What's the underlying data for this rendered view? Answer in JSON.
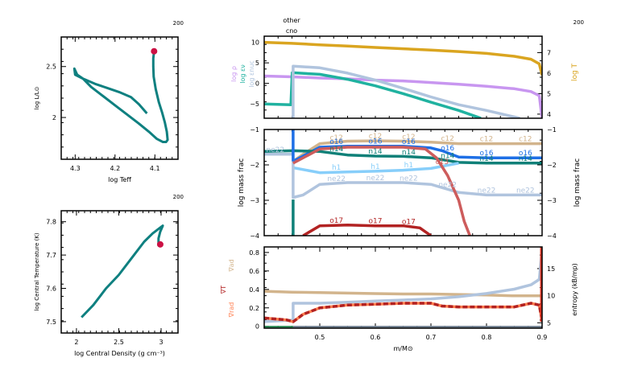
{
  "chart_data": [
    {
      "id": "hr",
      "type": "line",
      "title": "",
      "model_number": "200",
      "xlabel": "log Teff",
      "ylabel": "log L/L⊙",
      "xlim": [
        4.335,
        4.042
      ],
      "ylim": [
        1.59,
        2.79
      ],
      "xticks": [
        4.3,
        4.2,
        4.1
      ],
      "xtick_labels": [
        "4.3",
        "4.2",
        "4.1"
      ],
      "yticks": [
        2.0,
        2.5
      ],
      "ytick_labels": [
        "2",
        "2.5"
      ],
      "series": [
        {
          "name": "track",
          "color": "#0f8080",
          "x": [
            4.12,
            4.14,
            4.16,
            4.19,
            4.22,
            4.25,
            4.28,
            4.3,
            4.302,
            4.295,
            4.28,
            4.26,
            4.23,
            4.2,
            4.17,
            4.14,
            4.115,
            4.095,
            4.08,
            4.072,
            4.068,
            4.07,
            4.075,
            4.082,
            4.09,
            4.098,
            4.103,
            4.104,
            4.104,
            4.102
          ],
          "y": [
            2.04,
            2.13,
            2.2,
            2.25,
            2.29,
            2.33,
            2.38,
            2.42,
            2.48,
            2.42,
            2.38,
            2.3,
            2.21,
            2.12,
            2.03,
            1.94,
            1.86,
            1.79,
            1.76,
            1.76,
            1.78,
            1.86,
            1.95,
            2.05,
            2.15,
            2.28,
            2.4,
            2.5,
            2.58,
            2.65
          ]
        }
      ],
      "marker": {
        "name": "current model",
        "x": 4.102,
        "y": 2.65,
        "color": "#cc1144"
      }
    },
    {
      "id": "rhoT",
      "type": "line",
      "title": "",
      "model_number": "200",
      "xlabel": "log Central Density (g cm⁻³)",
      "ylabel": "log Central Temperature (K)",
      "xlim": [
        1.82,
        3.2
      ],
      "ylim": [
        7.466,
        7.833
      ],
      "xticks": [
        2.0,
        2.5,
        3.0
      ],
      "xtick_labels": [
        "2",
        "2.5",
        "3"
      ],
      "yticks": [
        7.5,
        7.6,
        7.7,
        7.8
      ],
      "ytick_labels": [
        "7.5",
        "7.6",
        "7.7",
        "7.8"
      ],
      "series": [
        {
          "name": "track",
          "color": "#0f8080",
          "x": [
            2.06,
            2.2,
            2.35,
            2.5,
            2.65,
            2.8,
            2.9,
            3.02,
            2.99,
            2.97,
            2.97
          ],
          "y": [
            7.513,
            7.55,
            7.6,
            7.64,
            7.69,
            7.74,
            7.765,
            7.788,
            7.77,
            7.75,
            7.728
          ]
        }
      ],
      "marker": {
        "name": "current model",
        "x": 2.99,
        "y": 7.732,
        "color": "#cc1144"
      }
    },
    {
      "id": "profile-top",
      "type": "line",
      "title": "",
      "model_number": "200",
      "top_labels": [
        "other",
        "cno"
      ],
      "xlim": [
        0.4,
        0.9
      ],
      "ylim": [
        -8.5,
        11.5
      ],
      "yticks": [
        -5,
        0,
        5,
        10
      ],
      "ytick_labels": [
        "−5",
        "0",
        "5",
        "10"
      ],
      "left_labels": [
        {
          "text": "log ρ",
          "color": "#c896f0"
        },
        {
          "text": "log εν",
          "color": "#20b2a0"
        },
        {
          "text": "log εnuc",
          "color": "#b0c4de"
        }
      ],
      "right_label": {
        "text": "log T",
        "color": "#daa520"
      },
      "y2lim": [
        3.8,
        7.8
      ],
      "y2ticks": [
        4,
        5,
        6,
        7
      ],
      "y2tick_labels": [
        "4",
        "5",
        "6",
        "7"
      ],
      "series": [
        {
          "name": "log T",
          "axis": "right",
          "color": "#daa520",
          "x": [
            0.4,
            0.45,
            0.5,
            0.55,
            0.6,
            0.65,
            0.7,
            0.75,
            0.8,
            0.85,
            0.88,
            0.895,
            0.9
          ],
          "y": [
            7.5,
            7.45,
            7.38,
            7.32,
            7.25,
            7.19,
            7.12,
            7.05,
            6.96,
            6.82,
            6.68,
            6.45,
            5.9
          ]
        },
        {
          "name": "log rho",
          "axis": "left",
          "color": "#c896f0",
          "x": [
            0.4,
            0.45,
            0.5,
            0.55,
            0.6,
            0.65,
            0.7,
            0.75,
            0.8,
            0.85,
            0.88,
            0.895,
            0.9
          ],
          "y": [
            1.8,
            1.6,
            1.3,
            1.1,
            0.8,
            0.6,
            0.2,
            -0.2,
            -0.7,
            -1.3,
            -2.0,
            -3.0,
            -8.5
          ]
        },
        {
          "name": "log eps_nu",
          "axis": "left",
          "color": "#20b2a0",
          "x": [
            0.4,
            0.448,
            0.4505,
            0.5,
            0.55,
            0.6,
            0.65,
            0.7,
            0.75,
            0.79
          ],
          "y": [
            -5.0,
            -5.2,
            2.6,
            2.2,
            1.0,
            -0.6,
            -2.5,
            -4.6,
            -6.6,
            -8.5
          ]
        },
        {
          "name": "log eps_nuc",
          "axis": "left",
          "color": "#b0c4de",
          "x": [
            0.452,
            0.452,
            0.5,
            0.55,
            0.6,
            0.65,
            0.7,
            0.75,
            0.8,
            0.86
          ],
          "y": [
            -8.5,
            4.2,
            3.8,
            2.5,
            0.8,
            -1.2,
            -3.3,
            -5.2,
            -6.6,
            -8.5
          ]
        }
      ]
    },
    {
      "id": "profile-mid",
      "type": "line",
      "title": "",
      "ylabel": "log mass frac",
      "y2label": "log mass frac",
      "xlim": [
        0.4,
        0.9
      ],
      "ylim": [
        -4,
        -1
      ],
      "yticks": [
        -4,
        -3,
        -2,
        -1
      ],
      "ytick_labels": [
        "−4",
        "−3",
        "−2",
        "−1"
      ],
      "series": [
        {
          "name": "c12",
          "color": "#d2b48c",
          "label_positions": [
            0.53,
            0.6,
            0.66,
            0.73,
            0.8,
            0.87
          ],
          "x": [
            0.452,
            0.47,
            0.5,
            0.55,
            0.6,
            0.65,
            0.7,
            0.75,
            0.8,
            0.9
          ],
          "y": [
            -1.9,
            -1.7,
            -1.4,
            -1.33,
            -1.32,
            -1.33,
            -1.36,
            -1.4,
            -1.4,
            -1.4
          ]
        },
        {
          "name": "o16",
          "color": "#1e6fe6",
          "label_positions": [
            0.53,
            0.6,
            0.66,
            0.73,
            0.8,
            0.87
          ],
          "x": [
            0.452,
            0.47,
            0.5,
            0.55,
            0.6,
            0.65,
            0.7,
            0.72,
            0.75,
            0.8,
            0.9
          ],
          "y": [
            -1.9,
            -1.75,
            -1.5,
            -1.47,
            -1.47,
            -1.47,
            -1.52,
            -1.6,
            -1.78,
            -1.8,
            -1.8
          ]
        },
        {
          "name": "n14",
          "color": "#0f8078",
          "label_positions": [
            0.53,
            0.6,
            0.66,
            0.73,
            0.8,
            0.87
          ],
          "x": [
            0.4,
            0.452,
            0.5,
            0.55,
            0.6,
            0.65,
            0.7,
            0.75,
            0.8,
            0.9
          ],
          "y": [
            -1.62,
            -1.6,
            -1.62,
            -1.72,
            -1.75,
            -1.76,
            -1.8,
            -1.93,
            -1.95,
            -1.95
          ]
        },
        {
          "name": "h1",
          "color": "#87cefa",
          "label_positions": [
            0.53,
            0.6,
            0.66
          ],
          "x": [
            0.452,
            0.5,
            0.55,
            0.6,
            0.65,
            0.7,
            0.75
          ],
          "y": [
            -2.08,
            -2.22,
            -2.2,
            -2.18,
            -2.15,
            -2.1,
            -1.95
          ]
        },
        {
          "name": "ne22",
          "color": "#b0c4de",
          "label_positions": [
            0.42,
            0.53,
            0.6,
            0.66,
            0.73,
            0.8,
            0.87
          ],
          "x": [
            0.4,
            0.452,
            0.452,
            0.47,
            0.5,
            0.55,
            0.6,
            0.65,
            0.7,
            0.75,
            0.8,
            0.9
          ],
          "y": [
            -1.7,
            -1.7,
            -2.92,
            -2.85,
            -2.55,
            -2.5,
            -2.5,
            -2.5,
            -2.55,
            -2.78,
            -2.85,
            -2.85
          ]
        },
        {
          "name": "c13",
          "color": "#cd5c5c",
          "label_positions": [
            0.72
          ],
          "x": [
            0.452,
            0.5,
            0.55,
            0.6,
            0.65,
            0.69,
            0.71,
            0.73,
            0.75,
            0.76,
            0.77
          ],
          "y": [
            -1.95,
            -1.55,
            -1.5,
            -1.5,
            -1.5,
            -1.55,
            -1.8,
            -2.3,
            -3.0,
            -3.6,
            -4.0
          ]
        },
        {
          "name": "o17",
          "color": "#b22222",
          "label_positions": [
            0.53,
            0.6,
            0.66
          ],
          "x": [
            0.47,
            0.5,
            0.55,
            0.6,
            0.65,
            0.68,
            0.7
          ],
          "y": [
            -4.0,
            -3.72,
            -3.7,
            -3.72,
            -3.72,
            -3.78,
            -4.0
          ]
        },
        {
          "name": "vertical boundary",
          "color": "#1e6fe6",
          "x": [
            0.452,
            0.452
          ],
          "y": [
            -1.0,
            -1.9
          ]
        },
        {
          "name": "n14 boundary",
          "color": "#0f8078",
          "x": [
            0.452,
            0.452
          ],
          "y": [
            -2.98,
            -4.0
          ]
        }
      ]
    },
    {
      "id": "profile-bot",
      "type": "line",
      "title": "",
      "xlabel": "m/M⊙",
      "xlim": [
        0.4,
        0.9
      ],
      "xticks": [
        0.5,
        0.6,
        0.7,
        0.8,
        0.9
      ],
      "xtick_labels": [
        "0.5",
        "0.6",
        "0.7",
        "0.8",
        "0.9"
      ],
      "ylim": [
        -0.02,
        0.86
      ],
      "yticks": [
        0,
        0.2,
        0.4,
        0.6,
        0.8
      ],
      "ytick_labels": [
        "0",
        "0.2",
        "0.4",
        "0.6",
        "0.8"
      ],
      "left_labels": [
        {
          "text": "∇ad",
          "color": "#d2b48c"
        },
        {
          "text": "∇T",
          "color": "#b22222"
        },
        {
          "text": "∇rad",
          "color": "#ff7f50"
        }
      ],
      "y2label": "entropy (kB/mp)",
      "y2lim": [
        4,
        19
      ],
      "y2ticks": [
        5,
        10,
        15
      ],
      "y2tick_labels": [
        "5",
        "10",
        "15"
      ],
      "series": [
        {
          "name": "grad_ad",
          "axis": "left",
          "color": "#d2b48c",
          "x": [
            0.4,
            0.45,
            0.5,
            0.55,
            0.6,
            0.65,
            0.7,
            0.75,
            0.8,
            0.85,
            0.89,
            0.9
          ],
          "y": [
            0.38,
            0.37,
            0.365,
            0.36,
            0.355,
            0.35,
            0.35,
            0.345,
            0.34,
            0.33,
            0.33,
            0.33
          ]
        },
        {
          "name": "entropy",
          "axis": "right",
          "color": "#b0c4de",
          "x": [
            0.4,
            0.452,
            0.452,
            0.5,
            0.55,
            0.6,
            0.65,
            0.7,
            0.75,
            0.8,
            0.85,
            0.88,
            0.895,
            0.9
          ],
          "y": [
            5.2,
            5.5,
            8.6,
            8.6,
            8.8,
            9.0,
            9.2,
            9.4,
            9.8,
            10.4,
            11.2,
            12.0,
            13.0,
            18.5
          ]
        },
        {
          "name": "grad_rad",
          "axis": "left",
          "color": "#ff7f50",
          "x": [
            0.4,
            0.44,
            0.452,
            0.47,
            0.5,
            0.55,
            0.6,
            0.65,
            0.7,
            0.72,
            0.75,
            0.8,
            0.85,
            0.88,
            0.895,
            0.9
          ],
          "y": [
            0.09,
            0.07,
            0.05,
            0.13,
            0.2,
            0.23,
            0.24,
            0.25,
            0.25,
            0.22,
            0.21,
            0.21,
            0.21,
            0.25,
            0.23,
            0.06
          ]
        },
        {
          "name": "grad_T",
          "axis": "left",
          "color": "#b22222",
          "dashed": true,
          "x": [
            0.4,
            0.44,
            0.452,
            0.47,
            0.5,
            0.55,
            0.6,
            0.65,
            0.7,
            0.72,
            0.75,
            0.8,
            0.85,
            0.88,
            0.895,
            0.9
          ],
          "y": [
            0.09,
            0.07,
            0.05,
            0.13,
            0.2,
            0.23,
            0.24,
            0.25,
            0.25,
            0.22,
            0.21,
            0.21,
            0.21,
            0.25,
            0.23,
            0.06
          ]
        },
        {
          "name": "grad_T spike",
          "axis": "left",
          "color": "#dd3322",
          "x": [
            0.899,
            0.899
          ],
          "y": [
            0.05,
            0.86
          ]
        },
        {
          "name": "mixing zone",
          "axis": "left",
          "color": "#2e8b57",
          "x": [
            0.4,
            0.452
          ],
          "y": [
            -0.01,
            -0.01
          ]
        },
        {
          "name": "baseline",
          "axis": "left",
          "color": "#708090",
          "x": [
            0.452,
            0.9
          ],
          "y": [
            -0.01,
            -0.01
          ]
        }
      ]
    }
  ]
}
